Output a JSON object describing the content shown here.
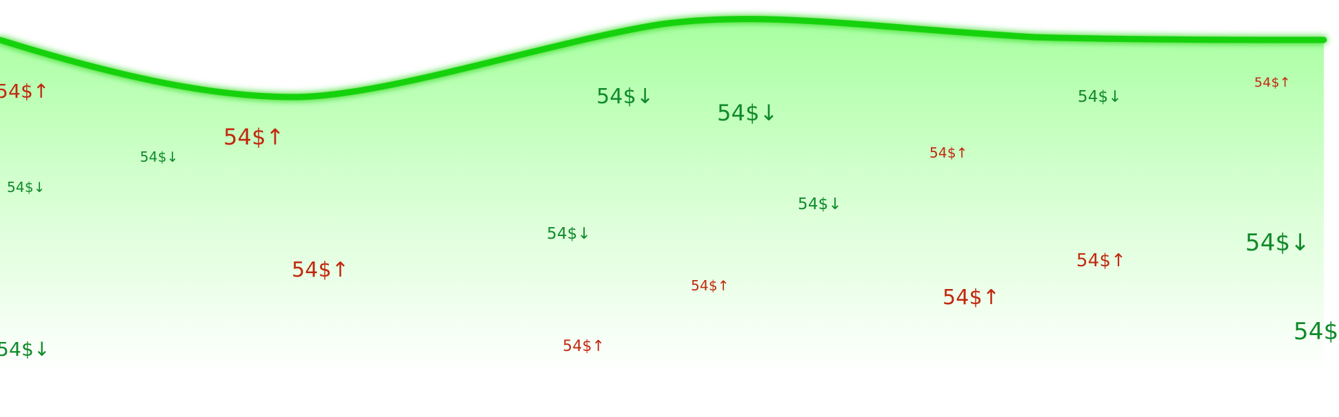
{
  "colors": {
    "curve": "#14d20e",
    "fill_top": "#a8ffa0",
    "fill_bottom": "#ffffff",
    "up": "#c0290e",
    "down": "#0f8a2a"
  },
  "tickers": [
    {
      "text": "54$↑",
      "trend": "up"
    },
    {
      "text": "54$↑",
      "trend": "up"
    },
    {
      "text": "54$↓",
      "trend": "down"
    },
    {
      "text": "54$↓",
      "trend": "down"
    },
    {
      "text": "54$↓",
      "trend": "down"
    },
    {
      "text": "54$↓",
      "trend": "down"
    },
    {
      "text": "54$↓",
      "trend": "down"
    },
    {
      "text": "54$↑",
      "trend": "up"
    },
    {
      "text": "54$↑",
      "trend": "up"
    },
    {
      "text": "54$↓",
      "trend": "down"
    },
    {
      "text": "54$↓",
      "trend": "down"
    },
    {
      "text": "54$↓",
      "trend": "down"
    },
    {
      "text": "54$↑",
      "trend": "up"
    },
    {
      "text": "54$↑",
      "trend": "up"
    },
    {
      "text": "54$↑",
      "trend": "up"
    },
    {
      "text": "54$↑",
      "trend": "up"
    },
    {
      "text": "54$↓",
      "trend": "down"
    },
    {
      "text": "54$↑",
      "trend": "up"
    },
    {
      "text": "54$",
      "trend": "down"
    }
  ]
}
